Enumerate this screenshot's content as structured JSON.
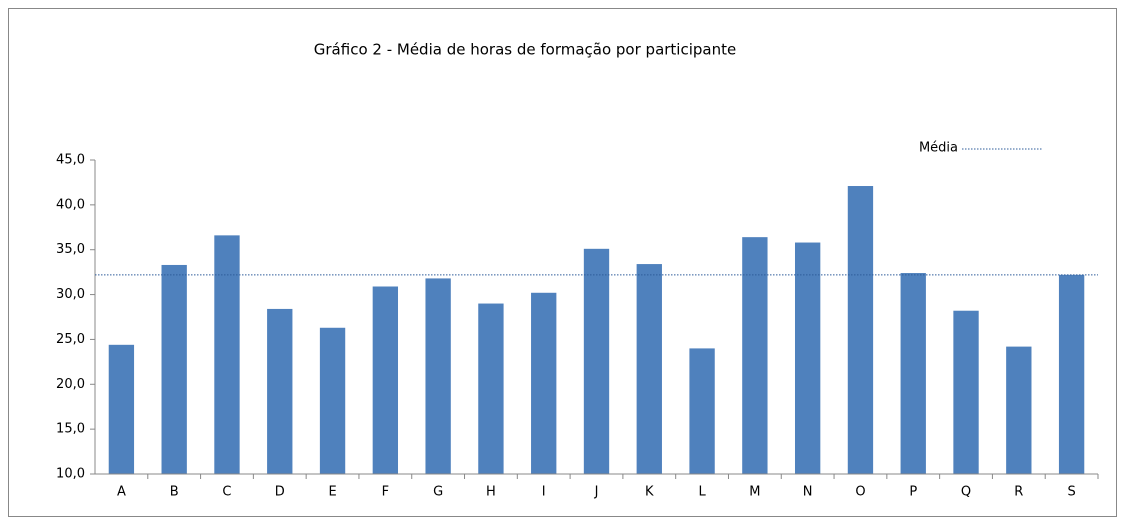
{
  "chart_data": {
    "type": "bar",
    "title": "Gráfico 2 -  Média de horas de formação por participante",
    "categories": [
      "A",
      "B",
      "C",
      "D",
      "E",
      "F",
      "G",
      "H",
      "I",
      "J",
      "K",
      "L",
      "M",
      "N",
      "O",
      "P",
      "Q",
      "R",
      "S"
    ],
    "values": [
      24.4,
      33.3,
      36.6,
      28.4,
      26.3,
      30.9,
      31.8,
      29.0,
      30.2,
      35.1,
      33.4,
      24.0,
      36.4,
      35.8,
      42.1,
      32.4,
      28.2,
      24.2,
      32.2
    ],
    "color": "#4f81bd",
    "ylim": [
      10,
      45
    ],
    "yticks": [
      {
        "value": 10,
        "label": "10,0"
      },
      {
        "value": 15,
        "label": "15,0"
      },
      {
        "value": 20,
        "label": "20,0"
      },
      {
        "value": 25,
        "label": "25,0"
      },
      {
        "value": 30,
        "label": "30,0"
      },
      {
        "value": 35,
        "label": "35,0"
      },
      {
        "value": 40,
        "label": "40,0"
      },
      {
        "value": 45,
        "label": "45,0"
      }
    ],
    "grid": false,
    "reference_line": {
      "name": "Média",
      "value": 32.2,
      "color": "#2e5c9a"
    }
  }
}
